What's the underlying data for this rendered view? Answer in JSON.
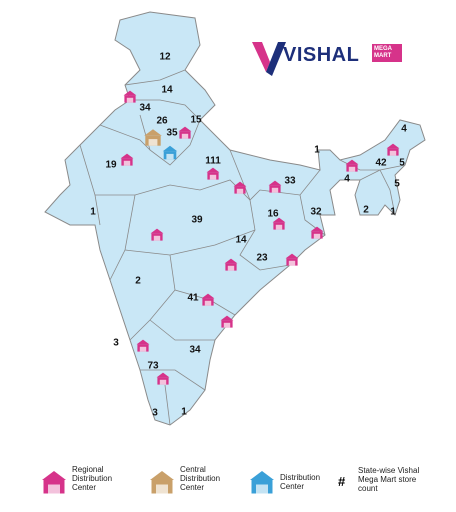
{
  "logo": {
    "name": "VISHAL",
    "tagline": "MEGA MART"
  },
  "map": {
    "store_counts": [
      12,
      14,
      34,
      26,
      15,
      35,
      19,
      111,
      1,
      33,
      42,
      4,
      5,
      4,
      5,
      2,
      1,
      1,
      39,
      16,
      32,
      14,
      23,
      2,
      41,
      3,
      34,
      73,
      3,
      1
    ]
  },
  "legend": {
    "items": [
      {
        "label": "Regional Distribution Center"
      },
      {
        "label": "Central Distribution Center"
      },
      {
        "label": "Distribution Center"
      }
    ],
    "count_symbol": "#",
    "count_label": "State-wise Vishal Mega Mart store count"
  }
}
